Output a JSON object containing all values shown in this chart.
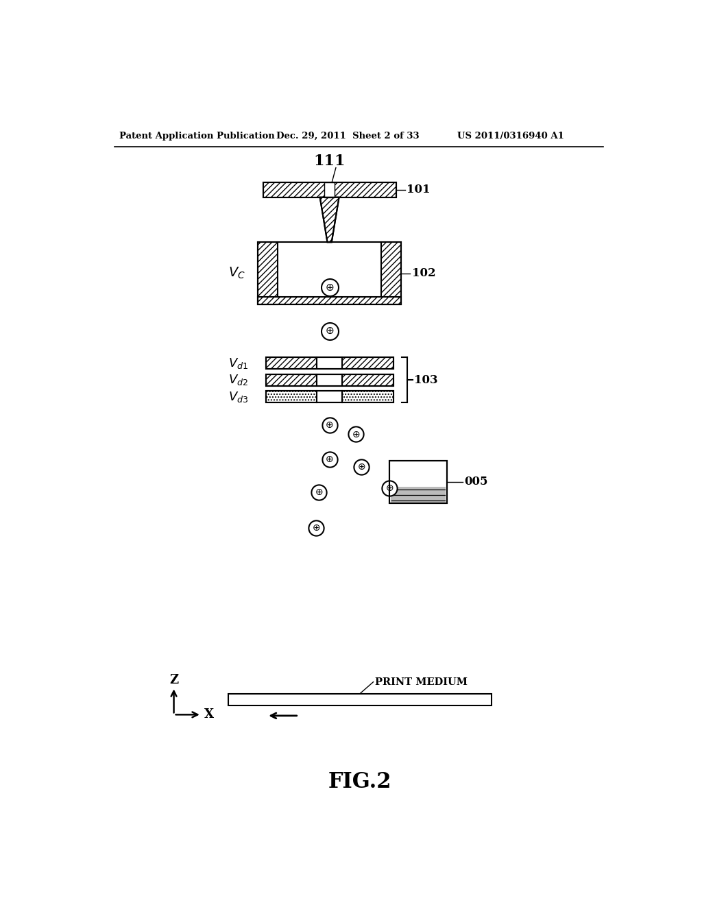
{
  "bg_color": "#ffffff",
  "header_left": "Patent Application Publication",
  "header_mid": "Dec. 29, 2011  Sheet 2 of 33",
  "header_right": "US 2011/0316940 A1",
  "fig_label": "FIG.2",
  "label_101": "101",
  "label_102": "102",
  "label_103": "103",
  "label_005": "005",
  "label_111": "111",
  "print_medium_label": "PRINT MEDIUM"
}
